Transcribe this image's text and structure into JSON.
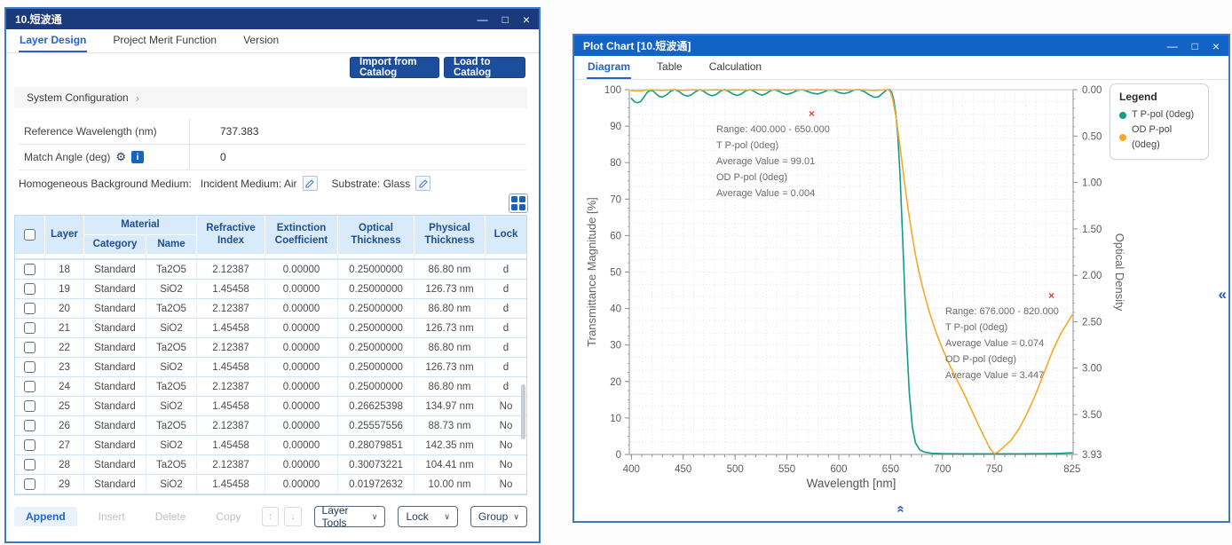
{
  "icons": {
    "minimize": "—",
    "maximize": "□",
    "close": "×",
    "chevron_right": "›",
    "chevron_down": "∨",
    "arrow_up": "↑",
    "arrow_down": "↓",
    "collapse_left": "«",
    "gear": "⚙",
    "info": "i",
    "red_x": "×"
  },
  "left_window": {
    "title": "10.短波通",
    "tabs": [
      "Layer Design",
      "Project Merit Function",
      "Version"
    ],
    "active_tab": "Layer Design",
    "toolbar": {
      "import_label": "Import from Catalog",
      "load_label": "Load to Catalog"
    },
    "system_configuration_label": "System Configuration",
    "settings": [
      {
        "label": "Reference Wavelength (nm)",
        "value": "737.383",
        "has_icons": false
      },
      {
        "label": "Match Angle (deg)",
        "value": "0",
        "has_icons": true
      }
    ],
    "medium_line": {
      "prefix": "Homogeneous Background Medium:",
      "incident_label": "Incident Medium:",
      "incident_value": "Air",
      "substrate_label": "Substrate:",
      "substrate_value": "Glass"
    },
    "table": {
      "headers": {
        "layer": "Layer",
        "material": "Material",
        "category": "Category",
        "name": "Name",
        "refractive": "Refractive Index",
        "extinction": "Extinction Coefficient",
        "optical": "Optical Thickness",
        "physical": "Physical Thickness",
        "lock": "Lock"
      },
      "rows": [
        {
          "layer": "18",
          "category": "Standard",
          "name": "Ta2O5",
          "refractive": "2.12387",
          "extinction": "0.00000",
          "optical": "0.25000000",
          "physical": "86.80 nm",
          "lock": "d"
        },
        {
          "layer": "19",
          "category": "Standard",
          "name": "SiO2",
          "refractive": "1.45458",
          "extinction": "0.00000",
          "optical": "0.25000000",
          "physical": "126.73 nm",
          "lock": "d"
        },
        {
          "layer": "20",
          "category": "Standard",
          "name": "Ta2O5",
          "refractive": "2.12387",
          "extinction": "0.00000",
          "optical": "0.25000000",
          "physical": "86.80 nm",
          "lock": "d"
        },
        {
          "layer": "21",
          "category": "Standard",
          "name": "SiO2",
          "refractive": "1.45458",
          "extinction": "0.00000",
          "optical": "0.25000000",
          "physical": "126.73 nm",
          "lock": "d"
        },
        {
          "layer": "22",
          "category": "Standard",
          "name": "Ta2O5",
          "refractive": "2.12387",
          "extinction": "0.00000",
          "optical": "0.25000000",
          "physical": "86.80 nm",
          "lock": "d"
        },
        {
          "layer": "23",
          "category": "Standard",
          "name": "SiO2",
          "refractive": "1.45458",
          "extinction": "0.00000",
          "optical": "0.25000000",
          "physical": "126.73 nm",
          "lock": "d"
        },
        {
          "layer": "24",
          "category": "Standard",
          "name": "Ta2O5",
          "refractive": "2.12387",
          "extinction": "0.00000",
          "optical": "0.25000000",
          "physical": "86.80 nm",
          "lock": "d"
        },
        {
          "layer": "25",
          "category": "Standard",
          "name": "SiO2",
          "refractive": "1.45458",
          "extinction": "0.00000",
          "optical": "0.26625398",
          "physical": "134.97 nm",
          "lock": "No"
        },
        {
          "layer": "26",
          "category": "Standard",
          "name": "Ta2O5",
          "refractive": "2.12387",
          "extinction": "0.00000",
          "optical": "0.25557556",
          "physical": "88.73 nm",
          "lock": "No"
        },
        {
          "layer": "27",
          "category": "Standard",
          "name": "SiO2",
          "refractive": "1.45458",
          "extinction": "0.00000",
          "optical": "0.28079851",
          "physical": "142.35 nm",
          "lock": "No"
        },
        {
          "layer": "28",
          "category": "Standard",
          "name": "Ta2O5",
          "refractive": "2.12387",
          "extinction": "0.00000",
          "optical": "0.30073221",
          "physical": "104.41 nm",
          "lock": "No"
        },
        {
          "layer": "29",
          "category": "Standard",
          "name": "SiO2",
          "refractive": "1.45458",
          "extinction": "0.00000",
          "optical": "0.01972632",
          "physical": "10.00 nm",
          "lock": "No"
        }
      ],
      "footer": {
        "append": "Append",
        "insert": "Insert",
        "delete": "Delete",
        "copy": "Copy",
        "layer_tools": "Layer Tools",
        "lock": "Lock",
        "group": "Group"
      }
    }
  },
  "right_window": {
    "title": "Plot Chart [10.短波通]",
    "tabs": [
      "Diagram",
      "Table",
      "Calculation"
    ],
    "active_tab": "Diagram",
    "legend": {
      "title": "Legend",
      "entries": [
        {
          "label": "T P-pol (0deg)",
          "color": "#109c8a"
        },
        {
          "label": "OD P-pol (0deg)",
          "color": "#f7a829"
        }
      ]
    },
    "annotations": [
      {
        "lines": [
          "Range: 400.000 - 650.000",
          "T P-pol (0deg)",
          "Average Value = 99.01",
          "OD P-pol (0deg)",
          "Average Value = 0.004"
        ]
      },
      {
        "lines": [
          "Range: 676.000 - 820.000",
          "T P-pol (0deg)",
          "Average Value = 0.074",
          "OD P-pol (0deg)",
          "Average Value = 3.447"
        ]
      }
    ]
  },
  "chart_data": {
    "type": "line",
    "title": "",
    "xlabel": "Wavelength [nm]",
    "ylabel_left": "Transmittance Magnitude [%]",
    "ylabel_right": "Optical Density",
    "xlim": [
      398,
      826
    ],
    "x_ticks": [
      400,
      450,
      500,
      550,
      600,
      650,
      700,
      750,
      825
    ],
    "ylim_left": [
      0,
      100
    ],
    "y_ticks_left": [
      0,
      10,
      20,
      30,
      40,
      50,
      60,
      70,
      80,
      90,
      100
    ],
    "ylim_right": [
      0,
      3.93
    ],
    "y_ticks_right": [
      "0.00",
      "0.50",
      "1.00",
      "1.50",
      "2.00",
      "2.50",
      "3.00",
      "3.50",
      "3.93"
    ],
    "grid": true,
    "legend_position": "top-right",
    "series": [
      {
        "name": "T P-pol (0deg)",
        "axis": "left",
        "color": "#109c8a",
        "x": [
          400,
          403,
          406,
          409,
          412,
          415,
          418,
          421,
          424,
          427,
          430,
          434,
          438,
          442,
          446,
          450,
          454,
          458,
          462,
          466,
          470,
          474,
          478,
          482,
          486,
          490,
          494,
          498,
          502,
          506,
          510,
          514,
          518,
          522,
          526,
          530,
          534,
          538,
          542,
          546,
          550,
          555,
          560,
          565,
          570,
          575,
          580,
          585,
          590,
          595,
          600,
          605,
          610,
          615,
          620,
          625,
          630,
          634,
          638,
          642,
          646,
          649,
          651,
          653,
          655,
          657,
          659,
          661,
          663,
          665,
          668,
          671,
          674,
          678,
          683,
          690,
          700,
          715,
          730,
          750,
          770,
          790,
          805,
          815,
          825
        ],
        "y": [
          97.6,
          96.7,
          96.4,
          96.8,
          97.9,
          99.2,
          99.8,
          99.6,
          98.8,
          98.1,
          98.0,
          98.6,
          99.6,
          100,
          99.5,
          98.6,
          98.2,
          98.6,
          99.5,
          100,
          99.5,
          98.7,
          98.3,
          98.7,
          99.6,
          100,
          99.5,
          98.8,
          98.4,
          98.8,
          99.6,
          100,
          99.6,
          98.9,
          98.5,
          98.9,
          99.7,
          100,
          99.6,
          99.0,
          98.7,
          99.1,
          99.8,
          100,
          99.5,
          99.0,
          98.8,
          99.3,
          99.9,
          99.9,
          99.2,
          98.9,
          99.3,
          99.9,
          100,
          99.4,
          98.5,
          97.9,
          98.0,
          98.9,
          99.9,
          100,
          99.3,
          97.2,
          93.5,
          87,
          77,
          64,
          49,
          34,
          17,
          7.5,
          3.2,
          1.3,
          0.6,
          0.32,
          0.22,
          0.18,
          0.17,
          0.17,
          0.18,
          0.2,
          0.25,
          0.32,
          0.45
        ]
      },
      {
        "name": "OD P-pol (0deg)",
        "axis": "right",
        "color": "#f7a829",
        "x": [
          400,
          405,
          410,
          415,
          420,
          425,
          430,
          435,
          440,
          445,
          450,
          455,
          460,
          465,
          470,
          475,
          480,
          485,
          490,
          495,
          500,
          510,
          520,
          530,
          540,
          550,
          560,
          570,
          580,
          590,
          600,
          610,
          620,
          628,
          634,
          640,
          645,
          648,
          650,
          652,
          655,
          658,
          661,
          664,
          667,
          670,
          674,
          678,
          683,
          688,
          694,
          700,
          707,
          714,
          721,
          728,
          735,
          742,
          746,
          750,
          754,
          758,
          766,
          774,
          782,
          790,
          798,
          806,
          814,
          820,
          825
        ],
        "y": [
          0.011,
          0.015,
          0.012,
          0.005,
          0.002,
          0.006,
          0.009,
          0.005,
          0.001,
          0.004,
          0.008,
          0.005,
          0.001,
          0.004,
          0.007,
          0.005,
          0.001,
          0.003,
          0.007,
          0.004,
          0.001,
          0.006,
          0.001,
          0.006,
          0.001,
          0.005,
          0.001,
          0.005,
          0.001,
          0.004,
          0.001,
          0.004,
          0.001,
          0.006,
          0.01,
          0.006,
          0.002,
          0.001,
          0.03,
          0.1,
          0.28,
          0.52,
          0.78,
          1.05,
          1.3,
          1.52,
          1.78,
          2.0,
          2.22,
          2.42,
          2.62,
          2.79,
          2.97,
          3.13,
          3.28,
          3.45,
          3.62,
          3.78,
          3.87,
          3.92,
          3.9,
          3.86,
          3.78,
          3.65,
          3.48,
          3.28,
          3.05,
          2.82,
          2.63,
          2.52,
          2.43
        ]
      }
    ]
  }
}
